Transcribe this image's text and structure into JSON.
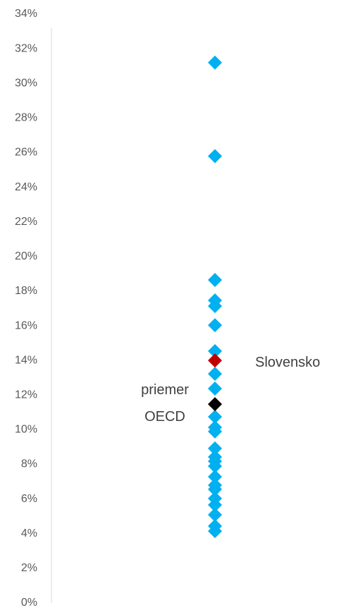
{
  "chart_data": {
    "type": "scatter",
    "ylim": [
      0,
      34
    ],
    "yticks": [
      {
        "value": 0,
        "label": "0%"
      },
      {
        "value": 2,
        "label": "2%"
      },
      {
        "value": 4,
        "label": "4%"
      },
      {
        "value": 6,
        "label": "6%"
      },
      {
        "value": 8,
        "label": "8%"
      },
      {
        "value": 10,
        "label": "10%"
      },
      {
        "value": 12,
        "label": "12%"
      },
      {
        "value": 14,
        "label": "14%"
      },
      {
        "value": 16,
        "label": "16%"
      },
      {
        "value": 18,
        "label": "18%"
      },
      {
        "value": 20,
        "label": "20%"
      },
      {
        "value": 22,
        "label": "22%"
      },
      {
        "value": 24,
        "label": "24%"
      },
      {
        "value": 26,
        "label": "26%"
      },
      {
        "value": 28,
        "label": "28%"
      },
      {
        "value": 30,
        "label": "30%"
      },
      {
        "value": 32,
        "label": "32%"
      },
      {
        "value": 34,
        "label": "34%"
      }
    ],
    "grid": false,
    "series": [
      {
        "color": "#00b0f0",
        "values": [
          31.2,
          25.8,
          18.65,
          17.47,
          17.14,
          16.04,
          14.54,
          13.23,
          12.38,
          10.75,
          10.14,
          9.9,
          8.92,
          8.43,
          8.18,
          7.9,
          7.29,
          6.8,
          6.56,
          6.03,
          5.66,
          5.09,
          4.44,
          4.15
        ]
      },
      {
        "color": "#c00000",
        "values": [
          14.0
        ],
        "label": [
          "Slovensko"
        ],
        "label_side": "right"
      },
      {
        "color": "#000000",
        "values": [
          11.48
        ],
        "label": [
          "priemer",
          "OECD"
        ],
        "label_side": "left"
      }
    ]
  }
}
